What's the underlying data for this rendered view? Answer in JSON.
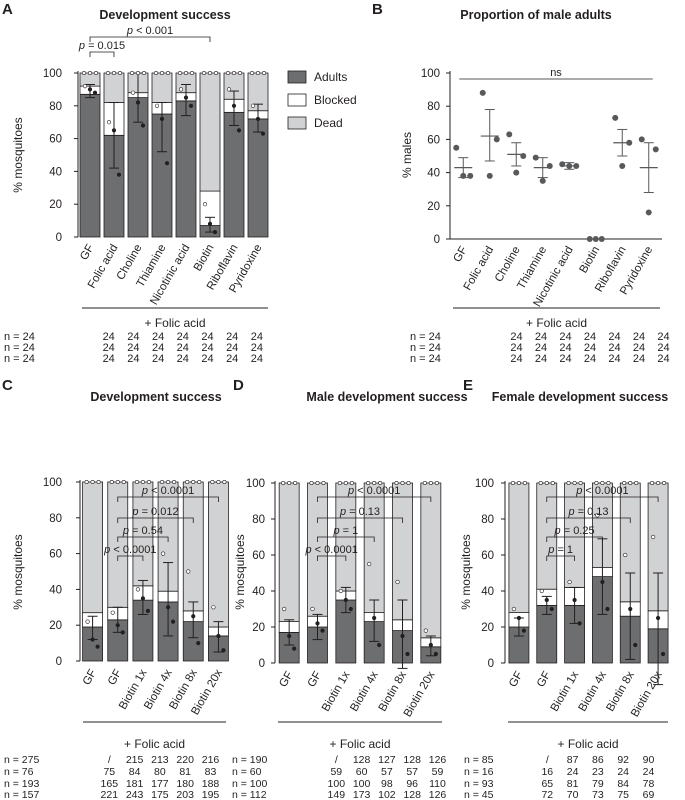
{
  "colors": {
    "adults": "#6d6e70",
    "blocked": "#ffffff",
    "dead": "#d1d2d4",
    "edge": "#231f20",
    "point": "#58595b"
  },
  "legend": [
    {
      "label": "Adults",
      "color": "#6d6e70"
    },
    {
      "label": "Blocked",
      "color": "#ffffff"
    },
    {
      "label": "Dead",
      "color": "#d1d2d4"
    }
  ],
  "chart_data": [
    {
      "panel": "A",
      "type": "bar",
      "stacked": true,
      "title": "Development success",
      "ylabel": "% mosquitoes",
      "ylim": [
        0,
        100
      ],
      "yticks": [
        0,
        20,
        40,
        60,
        80,
        100
      ],
      "categories": [
        "GF",
        "Folic acid",
        "Choline",
        "Thiamine",
        "Nicotinic acid",
        "Biotin",
        "Riboflavin",
        "Pyridoxine"
      ],
      "series": [
        {
          "name": "Adults",
          "values": [
            87,
            62,
            85,
            75,
            83,
            7,
            76,
            72
          ]
        },
        {
          "name": "Blocked",
          "values": [
            5,
            20,
            3,
            7,
            5,
            21,
            8,
            5
          ]
        },
        {
          "name": "Dead",
          "values": [
            8,
            18,
            12,
            18,
            12,
            72,
            16,
            23
          ]
        }
      ],
      "error_low": [
        85,
        42,
        70,
        52,
        74,
        3,
        68,
        64
      ],
      "error_high": [
        93,
        82,
        100,
        82,
        93,
        12,
        89,
        81
      ],
      "points": [
        [
          92,
          90,
          88
        ],
        [
          70,
          65,
          38
        ],
        [
          88,
          82,
          68
        ],
        [
          80,
          72,
          45
        ],
        [
          90,
          85,
          80
        ],
        [
          20,
          8,
          3
        ],
        [
          90,
          80,
          65
        ],
        [
          80,
          72,
          63
        ]
      ],
      "footer_label": "+ Folic acid",
      "n_rows": [
        [
          "n = 24",
          "24",
          "24",
          "24",
          "24",
          "24",
          "24",
          "24"
        ],
        [
          "n = 24",
          "24",
          "24",
          "24",
          "24",
          "24",
          "24",
          "24"
        ],
        [
          "n = 24",
          "24",
          "24",
          "24",
          "24",
          "24",
          "24",
          "24"
        ]
      ],
      "annotations": [
        {
          "text": "p = 0.015",
          "from": 0,
          "to": 1
        },
        {
          "text": "p < 0.001",
          "from": 0,
          "to": 5
        }
      ]
    },
    {
      "panel": "B",
      "type": "scatter",
      "title": "Proportion of male adults",
      "ylabel": "% males",
      "ylim": [
        0,
        100
      ],
      "yticks": [
        0,
        20,
        40,
        60,
        80,
        100
      ],
      "categories": [
        "GF",
        "Folic acid",
        "Choline",
        "Thiamine",
        "Nicotinic acid",
        "Biotin",
        "Riboflavin",
        "Pyridoxine"
      ],
      "points": [
        [
          55,
          38,
          38
        ],
        [
          88,
          60,
          38
        ],
        [
          63,
          50,
          40
        ],
        [
          49,
          44,
          35
        ],
        [
          45,
          44,
          44
        ],
        [
          0,
          0,
          0
        ],
        [
          73,
          58,
          44
        ],
        [
          60,
          54,
          16
        ]
      ],
      "mean": [
        43,
        62,
        51,
        43,
        44,
        null,
        58,
        43
      ],
      "error_low": [
        37,
        47,
        44,
        37,
        42,
        null,
        50,
        28
      ],
      "error_high": [
        49,
        78,
        58,
        49,
        46,
        null,
        66,
        58
      ],
      "footer_label": "+ Folic acid",
      "n_rows": [
        [
          "n = 24",
          "24",
          "24",
          "24",
          "24",
          "24",
          "24",
          "24"
        ],
        [
          "n = 24",
          "24",
          "24",
          "24",
          "24",
          "24",
          "24",
          "24"
        ],
        [
          "n = 24",
          "24",
          "24",
          "24",
          "24",
          "24",
          "24",
          "24"
        ]
      ],
      "annotations": [
        {
          "text": "ns",
          "from": 0,
          "to": 7
        }
      ]
    },
    {
      "panel": "C",
      "type": "bar",
      "stacked": true,
      "title": "Development success",
      "ylabel": "% mosquitoes",
      "ylim": [
        0,
        100
      ],
      "yticks": [
        0,
        20,
        40,
        60,
        80,
        100
      ],
      "categories": [
        "GF",
        "GF",
        "Biotin 1x",
        "Biotin 4x",
        "Biotin 8x",
        "Biotin 20x"
      ],
      "series": [
        {
          "name": "Adults",
          "values": [
            19,
            23,
            34,
            33,
            22,
            14
          ]
        },
        {
          "name": "Blocked",
          "values": [
            8,
            7,
            8,
            6,
            6,
            5
          ]
        },
        {
          "name": "Dead",
          "values": [
            73,
            70,
            58,
            61,
            72,
            81
          ]
        }
      ],
      "error_low": [
        12,
        16,
        26,
        14,
        13,
        5
      ],
      "error_high": [
        25,
        30,
        45,
        55,
        33,
        22
      ],
      "points": [
        [
          22,
          12,
          8
        ],
        [
          27,
          20,
          16
        ],
        [
          40,
          35,
          28
        ],
        [
          60,
          30,
          22
        ],
        [
          50,
          25,
          10
        ],
        [
          30,
          14,
          6
        ]
      ],
      "footer_label": "+ Folic acid",
      "n_rows": [
        [
          "n = 275",
          "/",
          "215",
          "213",
          "220",
          "216"
        ],
        [
          "n = 76",
          "75",
          "84",
          "80",
          "81",
          "83"
        ],
        [
          "n = 193",
          "165",
          "181",
          "177",
          "180",
          "188"
        ],
        [
          "n = 157",
          "221",
          "243",
          "175",
          "203",
          "195"
        ]
      ],
      "annotations": [
        {
          "text": "p < 0.0001",
          "from": 1,
          "to": 2
        },
        {
          "text": "p = 0.54",
          "from": 1,
          "to": 3
        },
        {
          "text": "p = 0.012",
          "from": 1,
          "to": 4
        },
        {
          "text": "p < 0.0001",
          "from": 1,
          "to": 5
        }
      ]
    },
    {
      "panel": "D",
      "type": "bar",
      "stacked": true,
      "title": "Male development success",
      "ylabel": "% mosquitoes",
      "ylim": [
        0,
        100
      ],
      "yticks": [
        0,
        20,
        40,
        60,
        80,
        100
      ],
      "categories": [
        "GF",
        "GF",
        "Biotin 1x",
        "Biotin 4x",
        "Biotin 8x",
        "Biotin 20x"
      ],
      "series": [
        {
          "name": "Adults",
          "values": [
            17,
            20,
            35,
            23,
            18,
            9
          ]
        },
        {
          "name": "Blocked",
          "values": [
            6,
            6,
            5,
            5,
            6,
            5
          ]
        },
        {
          "name": "Dead",
          "values": [
            77,
            74,
            60,
            72,
            76,
            86
          ]
        }
      ],
      "error_low": [
        10,
        13,
        28,
        12,
        -3,
        4
      ],
      "error_high": [
        24,
        27,
        42,
        35,
        35,
        15
      ],
      "points": [
        [
          30,
          15,
          8
        ],
        [
          30,
          22,
          18
        ],
        [
          40,
          35,
          30
        ],
        [
          55,
          25,
          10
        ],
        [
          45,
          15,
          5
        ],
        [
          18,
          10,
          5
        ]
      ],
      "footer_label": "+ Folic acid",
      "n_rows": [
        [
          "n = 190",
          "/",
          "128",
          "127",
          "128",
          "126"
        ],
        [
          "n = 60",
          "59",
          "60",
          "57",
          "57",
          "59"
        ],
        [
          "n = 100",
          "100",
          "100",
          "98",
          "96",
          "110"
        ],
        [
          "n = 112",
          "149",
          "173",
          "102",
          "128",
          "126"
        ]
      ],
      "annotations": [
        {
          "text": "p < 0.0001",
          "from": 1,
          "to": 2
        },
        {
          "text": "p = 1",
          "from": 1,
          "to": 3
        },
        {
          "text": "p = 0.13",
          "from": 1,
          "to": 4
        },
        {
          "text": "p < 0.0001",
          "from": 1,
          "to": 5
        }
      ]
    },
    {
      "panel": "E",
      "type": "bar",
      "stacked": true,
      "title": "Female development success",
      "ylabel": "% mosquitoes",
      "ylim": [
        0,
        100
      ],
      "yticks": [
        0,
        20,
        40,
        60,
        80,
        100
      ],
      "categories": [
        "GF",
        "GF",
        "Biotin 1x",
        "Biotin 4x",
        "Biotin 8x",
        "Biotin 20x"
      ],
      "series": [
        {
          "name": "Adults",
          "values": [
            20,
            32,
            32,
            48,
            26,
            19
          ]
        },
        {
          "name": "Blocked",
          "values": [
            8,
            9,
            10,
            5,
            8,
            10
          ]
        },
        {
          "name": "Dead",
          "values": [
            72,
            59,
            58,
            47,
            66,
            71
          ]
        }
      ],
      "error_low": [
        15,
        27,
        22,
        27,
        2,
        -12
      ],
      "error_high": [
        25,
        37,
        42,
        69,
        50,
        50
      ],
      "points": [
        [
          30,
          25,
          18
        ],
        [
          40,
          35,
          30
        ],
        [
          45,
          35,
          22
        ],
        [
          82,
          45,
          30
        ],
        [
          60,
          30,
          10
        ],
        [
          70,
          25,
          5
        ]
      ],
      "footer_label": "+ Folic acid",
      "n_rows": [
        [
          "n = 85",
          "/",
          "87",
          "86",
          "92",
          "90"
        ],
        [
          "n = 16",
          "16",
          "24",
          "23",
          "24",
          "24"
        ],
        [
          "n = 93",
          "65",
          "81",
          "79",
          "84",
          "78"
        ],
        [
          "n = 45",
          "72",
          "70",
          "73",
          "75",
          "69"
        ]
      ],
      "annotations": [
        {
          "text": "p = 1",
          "from": 1,
          "to": 2
        },
        {
          "text": "p = 0.25",
          "from": 1,
          "to": 3
        },
        {
          "text": "p = 0.13",
          "from": 1,
          "to": 4
        },
        {
          "text": "p < 0.0001",
          "from": 1,
          "to": 5
        }
      ]
    }
  ]
}
